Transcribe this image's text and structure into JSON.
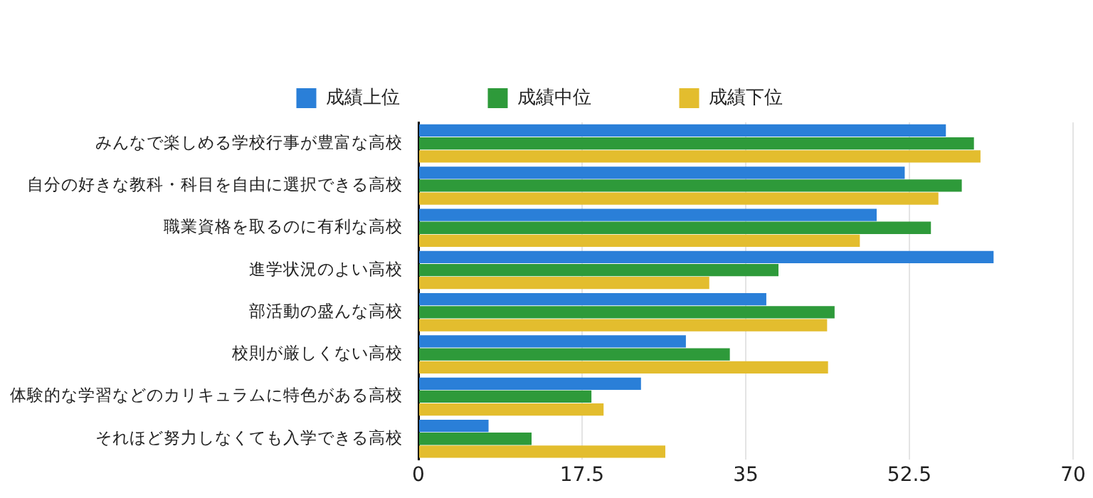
{
  "chart_data": {
    "type": "bar",
    "orientation": "horizontal",
    "categories": [
      "みんなで楽しめる学校行事が豊富な高校",
      "自分の好きな教科・科目を自由に選択できる高校",
      "職業資格を取るのに有利な高校",
      "進学状況のよい高校",
      "部活動の盛んな高校",
      "校則が厳しくない高校",
      "体験的な学習などのカリキュラムに特色がある高校",
      "それほど努力しなくても入学できる高校"
    ],
    "series": [
      {
        "name": "成績上位",
        "color": "#2a7fd8",
        "values": [
          56.4,
          52.0,
          49.0,
          61.5,
          37.2,
          28.6,
          23.8,
          7.5
        ]
      },
      {
        "name": "成績中位",
        "color": "#2e9a3a",
        "values": [
          59.4,
          58.1,
          54.8,
          38.5,
          44.5,
          33.3,
          18.5,
          12.1
        ]
      },
      {
        "name": "成績下位",
        "color": "#e3bd2e",
        "values": [
          60.1,
          55.6,
          47.2,
          31.1,
          43.7,
          43.8,
          19.8,
          26.4
        ]
      }
    ],
    "xlim": [
      0,
      70
    ],
    "xticks": [
      0,
      17.5,
      35,
      52.5,
      70
    ],
    "grid": "x",
    "legend": "top"
  }
}
